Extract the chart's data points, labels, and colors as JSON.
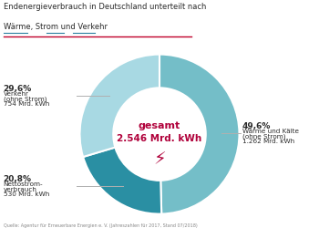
{
  "title_line1": "Endenergieverbrauch in Deutschland unterteilt nach",
  "title_line2": "Wärme, Strom und Verkehr",
  "slices": [
    {
      "label_pct": "49,6%",
      "label1": "Wärme und Kälte",
      "label2": "(ohne Strom)",
      "label3": "1.262 Mrd. kWh",
      "value": 49.6,
      "color": "#74bec8"
    },
    {
      "label_pct": "20,8%",
      "label1": "Nettostrom-",
      "label2": "verbrauch",
      "label3": "530 Mrd. kWh",
      "value": 20.8,
      "color": "#2a8fa3"
    },
    {
      "label_pct": "29,6%",
      "label1": "Verkehr",
      "label2": "(ohne Strom)",
      "label3": "754 Mrd. kWh",
      "value": 29.6,
      "color": "#a8d9e3"
    }
  ],
  "center_line1": "gesamt",
  "center_line2": "2.546 Mrd. kWh",
  "center_color": "#b0003a",
  "source_text": "Quelle: Agentur für Erneuerbare Energien e. V. (Jahreszahlen für 2017, Stand 07/2018)",
  "bg_color": "#ffffff",
  "title_color": "#2a2a2a",
  "label_color": "#2a2a2a",
  "pct_color": "#2a2a2a",
  "line_color": "#b0b0b0",
  "underline_color": "#2a7fa0",
  "red_line_color": "#c0002a"
}
